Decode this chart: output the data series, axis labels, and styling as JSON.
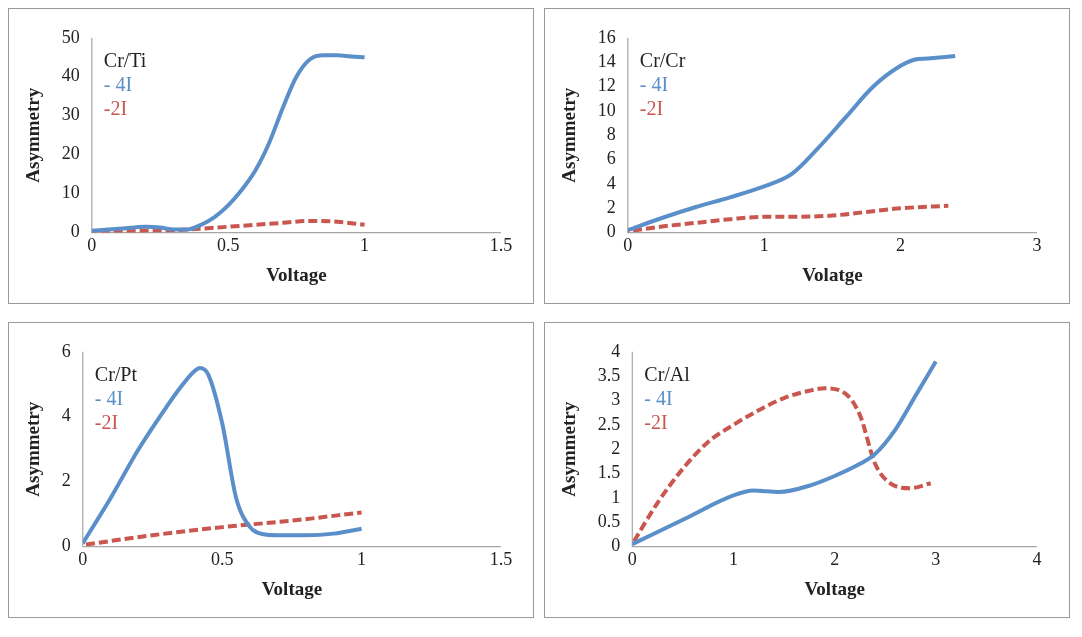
{
  "chart_data": [
    {
      "type": "line",
      "xlabel": "Voltage",
      "ylabel": "Asymmetry",
      "legend_title": "Cr/Ti",
      "legend": "top left",
      "grid": false,
      "marker": "none",
      "xlim": [
        0,
        1.5
      ],
      "xticks": [
        0,
        0.5,
        1,
        1.5
      ],
      "ylim": [
        0,
        50
      ],
      "yticks": [
        0,
        10,
        20,
        30,
        40,
        50
      ],
      "series": [
        {
          "name": "- 4I",
          "color": "#5b8fca",
          "line_style": "solid",
          "x": [
            0,
            0.1,
            0.2,
            0.25,
            0.3,
            0.35,
            0.4,
            0.45,
            0.5,
            0.55,
            0.6,
            0.65,
            0.7,
            0.75,
            0.8,
            0.85,
            0.9,
            0.95,
            1.0
          ],
          "values": [
            0.5,
            1,
            1.5,
            1.3,
            0.8,
            0.8,
            2,
            4,
            7,
            11,
            16,
            23,
            32,
            40,
            44.5,
            45.5,
            45.5,
            45.2,
            45
          ]
        },
        {
          "name": "-2I",
          "color": "#c9574f",
          "line_style": "dashed",
          "x": [
            0,
            0.1,
            0.2,
            0.3,
            0.4,
            0.5,
            0.6,
            0.7,
            0.8,
            0.9,
            1.0
          ],
          "values": [
            0,
            0.2,
            0.5,
            0.6,
            1,
            1.5,
            2,
            2.5,
            3,
            2.8,
            2
          ]
        }
      ]
    },
    {
      "type": "line",
      "xlabel": "Volatge",
      "ylabel": "Asymmetry",
      "legend_title": "Cr/Cr",
      "legend": "top left",
      "grid": false,
      "marker": "none",
      "xlim": [
        0,
        3
      ],
      "xticks": [
        0,
        1,
        2,
        3
      ],
      "ylim": [
        0,
        16
      ],
      "yticks": [
        0,
        2,
        4,
        6,
        8,
        10,
        12,
        14,
        16
      ],
      "series": [
        {
          "name": "- 4I",
          "color": "#5b8fca",
          "line_style": "solid",
          "x": [
            0,
            0.25,
            0.5,
            0.75,
            1,
            1.2,
            1.4,
            1.6,
            1.8,
            2,
            2.1,
            2.2,
            2.4
          ],
          "values": [
            0.2,
            1.2,
            2.1,
            2.9,
            3.8,
            4.8,
            7,
            9.5,
            12,
            13.7,
            14.2,
            14.3,
            14.5
          ]
        },
        {
          "name": "-2I",
          "color": "#c9574f",
          "line_style": "dashed",
          "x": [
            0,
            0.25,
            0.5,
            0.75,
            1,
            1.25,
            1.5,
            1.75,
            2,
            2.35
          ],
          "values": [
            0.1,
            0.5,
            0.8,
            1.1,
            1.3,
            1.3,
            1.4,
            1.7,
            2.0,
            2.2
          ]
        }
      ]
    },
    {
      "type": "line",
      "xlabel": "Voltage",
      "ylabel": "Asymmetry",
      "legend_title": "Cr/Pt",
      "legend": "top left",
      "grid": false,
      "marker": "none",
      "xlim": [
        0,
        1.5
      ],
      "xticks": [
        0,
        0.5,
        1,
        1.5
      ],
      "ylim": [
        0,
        6
      ],
      "yticks": [
        0,
        2,
        4,
        6
      ],
      "series": [
        {
          "name": "- 4I",
          "color": "#5b8fca",
          "line_style": "solid",
          "x": [
            0,
            0.1,
            0.2,
            0.3,
            0.35,
            0.4,
            0.42,
            0.45,
            0.5,
            0.55,
            0.6,
            0.65,
            0.7,
            0.8,
            0.9,
            1.0
          ],
          "values": [
            0.1,
            1.5,
            3,
            4.3,
            4.9,
            5.4,
            5.5,
            5.3,
            3.8,
            1.5,
            0.6,
            0.38,
            0.35,
            0.35,
            0.4,
            0.55
          ]
        },
        {
          "name": "-2I",
          "color": "#c9574f",
          "line_style": "dashed",
          "x": [
            0,
            0.25,
            0.5,
            0.75,
            1.0
          ],
          "values": [
            0.05,
            0.35,
            0.6,
            0.8,
            1.05
          ]
        }
      ]
    },
    {
      "type": "line",
      "xlabel": "Voltage",
      "ylabel": "Asymmetry",
      "legend_title": "Cr/Al",
      "legend": "top left",
      "grid": false,
      "marker": "none",
      "xlim": [
        0,
        4
      ],
      "xticks": [
        0,
        1,
        2,
        3,
        4
      ],
      "ylim": [
        0,
        4
      ],
      "yticks": [
        0,
        0.5,
        1,
        1.5,
        2,
        2.5,
        3,
        3.5,
        4
      ],
      "series": [
        {
          "name": "- 4I",
          "color": "#5b8fca",
          "line_style": "solid",
          "x": [
            0,
            0.5,
            1,
            1.2,
            1.45,
            1.75,
            2,
            2.25,
            2.4,
            2.6,
            2.8,
            3.0
          ],
          "values": [
            0.05,
            0.55,
            1.05,
            1.15,
            1.12,
            1.25,
            1.45,
            1.7,
            1.9,
            2.4,
            3.1,
            3.8
          ]
        },
        {
          "name": "-2I",
          "color": "#c9574f",
          "line_style": "dashed",
          "x": [
            0,
            0.25,
            0.5,
            0.75,
            1,
            1.25,
            1.5,
            1.75,
            1.9,
            2.1,
            2.25,
            2.4,
            2.55,
            2.75,
            2.95
          ],
          "values": [
            0.05,
            0.9,
            1.6,
            2.15,
            2.5,
            2.8,
            3.05,
            3.2,
            3.25,
            3.15,
            2.7,
            1.7,
            1.3,
            1.2,
            1.3
          ]
        }
      ]
    }
  ]
}
